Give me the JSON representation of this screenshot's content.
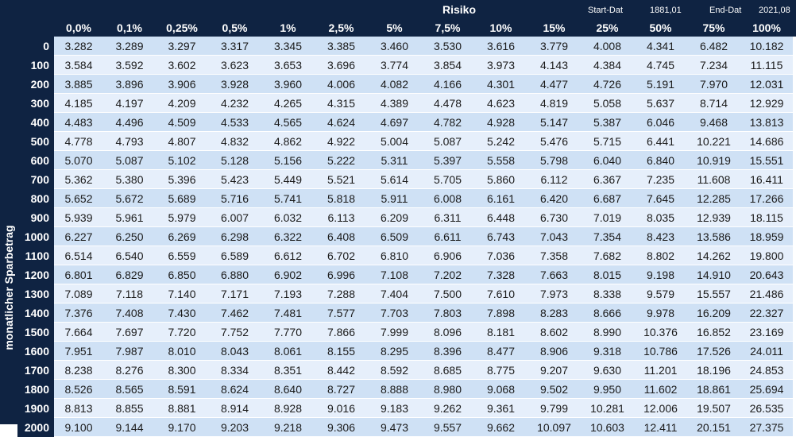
{
  "header": {
    "risk_label": "Risiko",
    "start_label": "Start-Dat",
    "start_value": "1881,01",
    "end_label": "End-Dat",
    "end_value": "2021,08"
  },
  "side_label": "monatlicher Sparbetrag",
  "columns": [
    "0,0%",
    "0,1%",
    "0,25%",
    "0,5%",
    "1%",
    "2,5%",
    "5%",
    "7,5%",
    "10%",
    "15%",
    "25%",
    "50%",
    "75%",
    "100%"
  ],
  "rows": [
    {
      "label": "0",
      "values": [
        "3.282",
        "3.289",
        "3.297",
        "3.317",
        "3.345",
        "3.385",
        "3.460",
        "3.530",
        "3.616",
        "3.779",
        "4.008",
        "4.341",
        "6.482",
        "10.182"
      ]
    },
    {
      "label": "100",
      "values": [
        "3.584",
        "3.592",
        "3.602",
        "3.623",
        "3.653",
        "3.696",
        "3.774",
        "3.854",
        "3.973",
        "4.143",
        "4.384",
        "4.745",
        "7.234",
        "11.115"
      ]
    },
    {
      "label": "200",
      "values": [
        "3.885",
        "3.896",
        "3.906",
        "3.928",
        "3.960",
        "4.006",
        "4.082",
        "4.166",
        "4.301",
        "4.477",
        "4.726",
        "5.191",
        "7.970",
        "12.031"
      ]
    },
    {
      "label": "300",
      "values": [
        "4.185",
        "4.197",
        "4.209",
        "4.232",
        "4.265",
        "4.315",
        "4.389",
        "4.478",
        "4.623",
        "4.819",
        "5.058",
        "5.637",
        "8.714",
        "12.929"
      ]
    },
    {
      "label": "400",
      "values": [
        "4.483",
        "4.496",
        "4.509",
        "4.533",
        "4.565",
        "4.624",
        "4.697",
        "4.782",
        "4.928",
        "5.147",
        "5.387",
        "6.046",
        "9.468",
        "13.813"
      ]
    },
    {
      "label": "500",
      "values": [
        "4.778",
        "4.793",
        "4.807",
        "4.832",
        "4.862",
        "4.922",
        "5.004",
        "5.087",
        "5.242",
        "5.476",
        "5.715",
        "6.441",
        "10.221",
        "14.686"
      ]
    },
    {
      "label": "600",
      "values": [
        "5.070",
        "5.087",
        "5.102",
        "5.128",
        "5.156",
        "5.222",
        "5.311",
        "5.397",
        "5.558",
        "5.798",
        "6.040",
        "6.840",
        "10.919",
        "15.551"
      ]
    },
    {
      "label": "700",
      "values": [
        "5.362",
        "5.380",
        "5.396",
        "5.423",
        "5.449",
        "5.521",
        "5.614",
        "5.705",
        "5.860",
        "6.112",
        "6.367",
        "7.235",
        "11.608",
        "16.411"
      ]
    },
    {
      "label": "800",
      "values": [
        "5.652",
        "5.672",
        "5.689",
        "5.716",
        "5.741",
        "5.818",
        "5.911",
        "6.008",
        "6.161",
        "6.420",
        "6.687",
        "7.645",
        "12.285",
        "17.266"
      ]
    },
    {
      "label": "900",
      "values": [
        "5.939",
        "5.961",
        "5.979",
        "6.007",
        "6.032",
        "6.113",
        "6.209",
        "6.311",
        "6.448",
        "6.730",
        "7.019",
        "8.035",
        "12.939",
        "18.115"
      ]
    },
    {
      "label": "1000",
      "values": [
        "6.227",
        "6.250",
        "6.269",
        "6.298",
        "6.322",
        "6.408",
        "6.509",
        "6.611",
        "6.743",
        "7.043",
        "7.354",
        "8.423",
        "13.586",
        "18.959"
      ]
    },
    {
      "label": "1100",
      "values": [
        "6.514",
        "6.540",
        "6.559",
        "6.589",
        "6.612",
        "6.702",
        "6.810",
        "6.906",
        "7.036",
        "7.358",
        "7.682",
        "8.802",
        "14.262",
        "19.800"
      ]
    },
    {
      "label": "1200",
      "values": [
        "6.801",
        "6.829",
        "6.850",
        "6.880",
        "6.902",
        "6.996",
        "7.108",
        "7.202",
        "7.328",
        "7.663",
        "8.015",
        "9.198",
        "14.910",
        "20.643"
      ]
    },
    {
      "label": "1300",
      "values": [
        "7.089",
        "7.118",
        "7.140",
        "7.171",
        "7.193",
        "7.288",
        "7.404",
        "7.500",
        "7.610",
        "7.973",
        "8.338",
        "9.579",
        "15.557",
        "21.486"
      ]
    },
    {
      "label": "1400",
      "values": [
        "7.376",
        "7.408",
        "7.430",
        "7.462",
        "7.481",
        "7.577",
        "7.703",
        "7.803",
        "7.898",
        "8.283",
        "8.666",
        "9.978",
        "16.209",
        "22.327"
      ]
    },
    {
      "label": "1500",
      "values": [
        "7.664",
        "7.697",
        "7.720",
        "7.752",
        "7.770",
        "7.866",
        "7.999",
        "8.096",
        "8.181",
        "8.602",
        "8.990",
        "10.376",
        "16.852",
        "23.169"
      ]
    },
    {
      "label": "1600",
      "values": [
        "7.951",
        "7.987",
        "8.010",
        "8.043",
        "8.061",
        "8.155",
        "8.295",
        "8.396",
        "8.477",
        "8.906",
        "9.318",
        "10.786",
        "17.526",
        "24.011"
      ]
    },
    {
      "label": "1700",
      "values": [
        "8.238",
        "8.276",
        "8.300",
        "8.334",
        "8.351",
        "8.442",
        "8.592",
        "8.685",
        "8.775",
        "9.207",
        "9.630",
        "11.201",
        "18.196",
        "24.853"
      ]
    },
    {
      "label": "1800",
      "values": [
        "8.526",
        "8.565",
        "8.591",
        "8.624",
        "8.640",
        "8.727",
        "8.888",
        "8.980",
        "9.068",
        "9.502",
        "9.950",
        "11.602",
        "18.861",
        "25.694"
      ]
    },
    {
      "label": "1900",
      "values": [
        "8.813",
        "8.855",
        "8.881",
        "8.914",
        "8.928",
        "9.016",
        "9.183",
        "9.262",
        "9.361",
        "9.799",
        "10.281",
        "12.006",
        "19.507",
        "26.535"
      ]
    },
    {
      "label": "2000",
      "values": [
        "9.100",
        "9.144",
        "9.170",
        "9.203",
        "9.218",
        "9.306",
        "9.473",
        "9.557",
        "9.662",
        "10.097",
        "10.603",
        "12.411",
        "20.151",
        "27.375"
      ]
    }
  ],
  "colors": {
    "header_bg": "#0f2342",
    "row_odd": "#cfe1f5",
    "row_even": "#e6effb"
  }
}
